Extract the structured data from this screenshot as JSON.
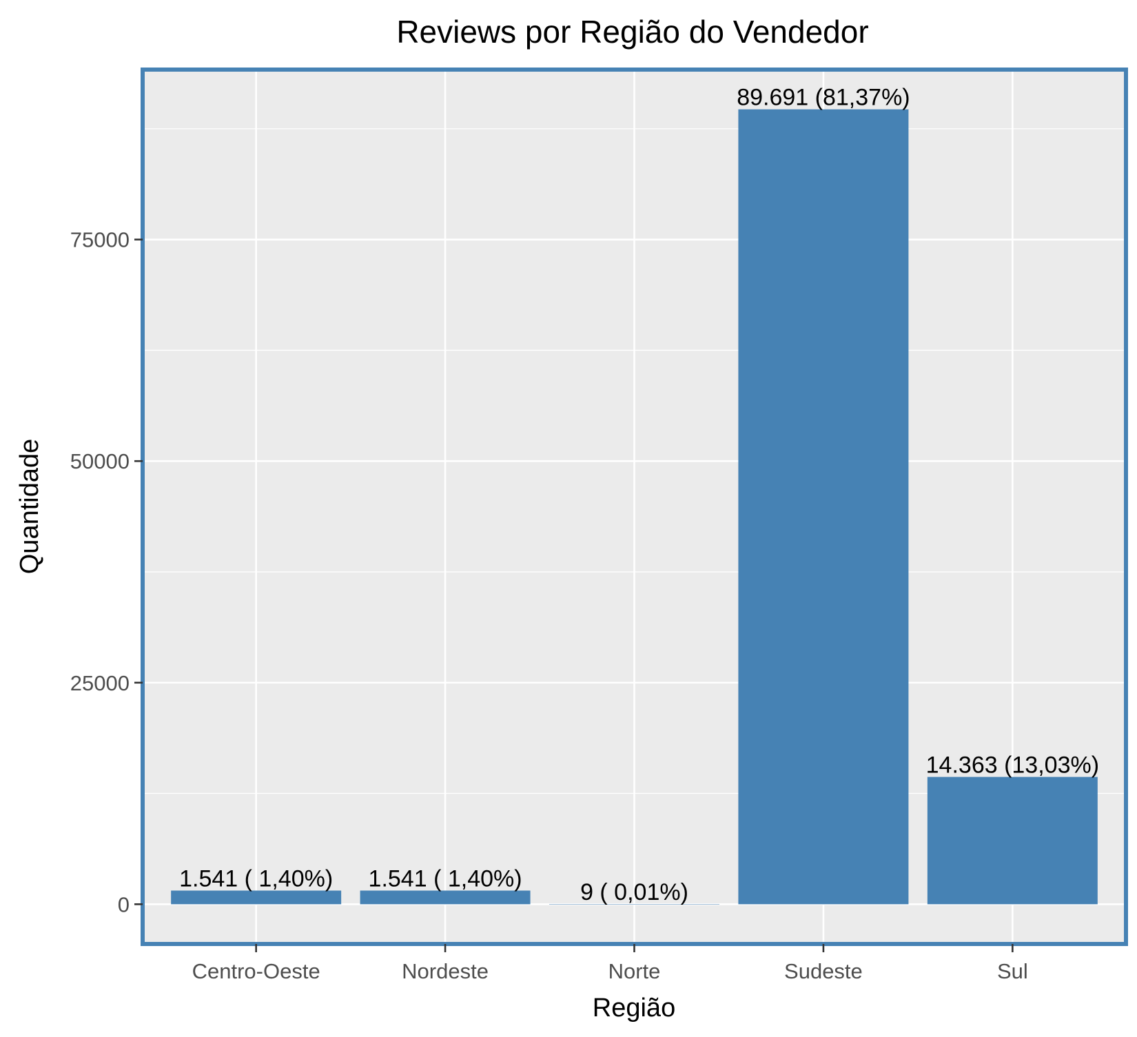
{
  "chart_data": {
    "type": "bar",
    "title": "Reviews por Região do Vendedor",
    "xlabel": "Região",
    "ylabel": "Quantidade",
    "categories": [
      "Centro-Oeste",
      "Nordeste",
      "Norte",
      "Sudeste",
      "Sul"
    ],
    "values": [
      1541,
      1541,
      9,
      89691,
      14363
    ],
    "data_labels": [
      "1.541 ( 1,40%)",
      "1.541 ( 1,40%)",
      "9 ( 0,01%)",
      "89.691 (81,37%)",
      "14.363 (13,03%)"
    ],
    "ylim": [
      -4485,
      94176
    ],
    "yticks": [
      0,
      25000,
      50000,
      75000
    ],
    "ytick_labels": [
      "0",
      "25000",
      "50000",
      "75000"
    ],
    "grid": true,
    "legend": "none",
    "colors": {
      "bar": "#4682B4",
      "panel_background": "#EBEBEB",
      "panel_border": "#4682B4",
      "grid": "#FFFFFF"
    }
  }
}
